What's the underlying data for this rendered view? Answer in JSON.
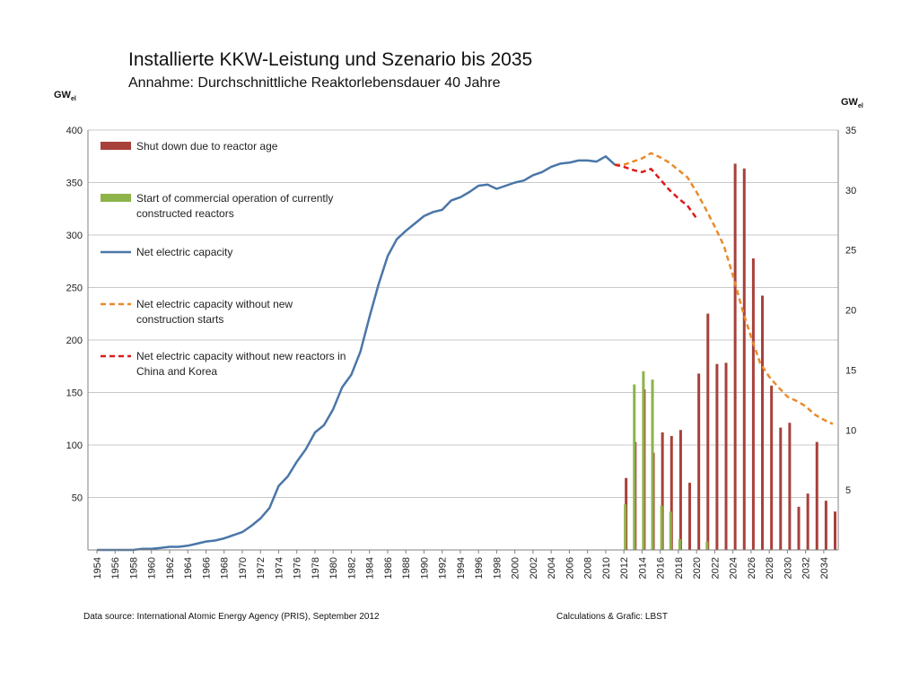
{
  "title": "Installierte KKW-Leistung und Szenario bis 2035",
  "subtitle": "Annahme: Durchschnittliche Reaktorlebensdauer 40 Jahre",
  "footer": {
    "source": "Data source: International Atomic Energy Agency (PRIS), September 2012",
    "credits": "Calculations & Grafic: LBST"
  },
  "colors": {
    "shutdown": "#a8403c",
    "start": "#8db34a",
    "net": "#4a76a8",
    "no_new_construction": "#e98a2c",
    "no_china_korea": "#dd1c1c",
    "grid": "#c8c8c8",
    "axis": "#808080"
  },
  "chart_data": {
    "type": "bar+line",
    "title": "Installierte KKW-Leistung und Szenario bis 2035",
    "subtitle": "Annahme: Durchschnittliche Reaktorlebensdauer 40 Jahre",
    "x_range": [
      1954,
      2035
    ],
    "x_tick_labels": [
      "1954",
      "1956",
      "1958",
      "1960",
      "1962",
      "1964",
      "1966",
      "1968",
      "1970",
      "1972",
      "1974",
      "1976",
      "1978",
      "1980",
      "1982",
      "1984",
      "1986",
      "1988",
      "1990",
      "1992",
      "1994",
      "1996",
      "1998",
      "2000",
      "2002",
      "2004",
      "2006",
      "2008",
      "2010",
      "2012",
      "2014",
      "2016",
      "2018",
      "2020",
      "2022",
      "2024",
      "2026",
      "2028",
      "2030",
      "2032",
      "2034"
    ],
    "y_left": {
      "unit_main": "GW",
      "unit_sub": "el",
      "range": [
        0,
        400
      ],
      "tick_labels": [
        "50",
        "100",
        "150",
        "200",
        "250",
        "300",
        "350",
        "400"
      ]
    },
    "y_right": {
      "unit_main": "GW",
      "unit_sub": "el",
      "range": [
        0,
        35
      ],
      "tick_labels": [
        "5",
        "10",
        "15",
        "20",
        "25",
        "30",
        "35"
      ]
    },
    "grid": true,
    "legend_position": "top-left",
    "legend": [
      {
        "name": "Shut down due to reactor age",
        "marker": "bar",
        "color": "#a8403c"
      },
      {
        "name": "Start of commercial operation of currently constructed reactors",
        "marker": "bar",
        "color": "#8db34a"
      },
      {
        "name": "Net electric capacity",
        "marker": "line",
        "color": "#4a76a8"
      },
      {
        "name": "Net electric capacity without new construction starts",
        "marker": "dashed",
        "color": "#e98a2c"
      },
      {
        "name": "Net electric capacity without new reactors in China and Korea",
        "marker": "dashed",
        "color": "#dd1c1c"
      }
    ],
    "legend_display_lines": [
      [
        "Shut down due to reactor age"
      ],
      [
        "Start of commercial operation of currently",
        "constructed reactors"
      ],
      [
        "Net electric capacity"
      ],
      [
        "Net electric capacity without new",
        "construction starts"
      ],
      [
        "Net electric capacity without new reactors in",
        "China and Korea"
      ]
    ],
    "series": [
      {
        "name": "Shut down due to reactor age",
        "type": "bar",
        "axis": "right",
        "x": [
          2012,
          2013,
          2014,
          2015,
          2016,
          2017,
          2018,
          2019,
          2020,
          2021,
          2022,
          2023,
          2024,
          2025,
          2026,
          2027,
          2028,
          2029,
          2030,
          2031,
          2032,
          2033,
          2034,
          2035
        ],
        "values": [
          6.0,
          9.0,
          13.4,
          8.1,
          9.8,
          9.5,
          10.0,
          5.6,
          14.7,
          19.7,
          15.5,
          15.6,
          32.2,
          31.8,
          24.3,
          21.2,
          13.7,
          10.2,
          10.6,
          3.6,
          4.7,
          9.0,
          4.1,
          3.2
        ]
      },
      {
        "name": "Start of commercial operation of currently constructed reactors",
        "type": "bar",
        "axis": "right",
        "x": [
          2012,
          2013,
          2014,
          2015,
          2016,
          2017,
          2018,
          2021
        ],
        "values": [
          3.8,
          13.8,
          14.9,
          14.2,
          3.7,
          3.2,
          0.9,
          0.7
        ]
      },
      {
        "name": "Net electric capacity",
        "type": "line",
        "axis": "left",
        "x": [
          1954,
          1955,
          1956,
          1957,
          1958,
          1959,
          1960,
          1961,
          1962,
          1963,
          1964,
          1965,
          1966,
          1967,
          1968,
          1969,
          1970,
          1971,
          1972,
          1973,
          1974,
          1975,
          1976,
          1977,
          1978,
          1979,
          1980,
          1981,
          1982,
          1983,
          1984,
          1985,
          1986,
          1987,
          1988,
          1989,
          1990,
          1991,
          1992,
          1993,
          1994,
          1995,
          1996,
          1997,
          1998,
          1999,
          2000,
          2001,
          2002,
          2003,
          2004,
          2005,
          2006,
          2007,
          2008,
          2009,
          2010,
          2011
        ],
        "values": [
          0,
          0,
          0,
          0,
          0,
          1,
          1,
          2,
          3,
          3,
          4,
          6,
          8,
          9,
          11,
          14,
          17,
          23,
          30,
          40,
          61,
          70,
          84,
          96,
          112,
          119,
          134,
          155,
          167,
          189,
          222,
          253,
          280,
          296,
          304,
          311,
          318,
          322,
          324,
          333,
          336,
          341,
          347,
          348,
          344,
          347,
          350,
          352,
          357,
          360,
          365,
          368,
          369,
          371,
          371,
          370,
          375,
          367
        ]
      },
      {
        "name": "Net electric capacity without new construction starts",
        "type": "line",
        "style": "dashed",
        "axis": "left",
        "x": [
          2011,
          2012,
          2013,
          2014,
          2015,
          2016,
          2017,
          2018,
          2019,
          2020,
          2021,
          2022,
          2023,
          2024,
          2025,
          2026,
          2027,
          2028,
          2029,
          2030,
          2031,
          2032,
          2033,
          2034,
          2035
        ],
        "values": [
          367,
          367,
          370,
          373,
          378,
          374,
          369,
          362,
          355,
          341,
          325,
          308,
          290,
          262,
          230,
          203,
          178,
          165,
          155,
          146,
          142,
          137,
          129,
          124,
          120
        ]
      },
      {
        "name": "Net electric capacity without new reactors in China and Korea",
        "type": "line",
        "style": "dashed",
        "axis": "left",
        "x": [
          2011,
          2012,
          2013,
          2014,
          2015,
          2016,
          2017,
          2018,
          2019,
          2020
        ],
        "values": [
          367,
          365,
          362,
          360,
          363,
          353,
          343,
          335,
          328,
          316
        ]
      }
    ]
  }
}
